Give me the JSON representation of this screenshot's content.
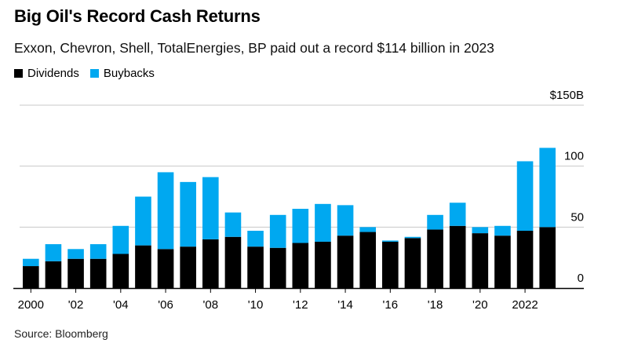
{
  "chart_data": {
    "type": "bar",
    "stacked": true,
    "title": "Big Oil's Record Cash Returns",
    "subtitle": "Exxon, Chevron, Shell, TotalEnergies, BP paid out a record $114 billion in 2023",
    "source": "Source: Bloomberg",
    "categories": [
      "2000",
      "2001",
      "2002",
      "2003",
      "2004",
      "2005",
      "2006",
      "2007",
      "2008",
      "2009",
      "2010",
      "2011",
      "2012",
      "2013",
      "2014",
      "2015",
      "2016",
      "2017",
      "2018",
      "2019",
      "2020",
      "2021",
      "2022",
      "2023"
    ],
    "series": [
      {
        "name": "Dividends",
        "color": "#000000",
        "values": [
          18,
          22,
          24,
          24,
          28,
          35,
          32,
          34,
          40,
          42,
          34,
          33,
          37,
          38,
          43,
          46,
          38,
          41,
          48,
          51,
          45,
          43,
          47,
          50
        ]
      },
      {
        "name": "Buybacks",
        "color": "#00a8f0",
        "values": [
          6,
          14,
          8,
          12,
          23,
          40,
          63,
          53,
          51,
          20,
          13,
          27,
          28,
          31,
          25,
          4,
          1,
          1,
          12,
          19,
          5,
          8,
          57,
          65
        ]
      }
    ],
    "x_tick_labels": [
      "2000",
      "'02",
      "'04",
      "'06",
      "'08",
      "'10",
      "'12",
      "'14",
      "'16",
      "'18",
      "'20",
      "2022"
    ],
    "y_tick_labels": [
      "0",
      "50",
      "100",
      "$150B"
    ],
    "y_ticks": [
      0,
      50,
      100,
      150
    ],
    "ylim": [
      0,
      150
    ],
    "xlabel": "",
    "ylabel": "",
    "legend_position": "top-left"
  }
}
